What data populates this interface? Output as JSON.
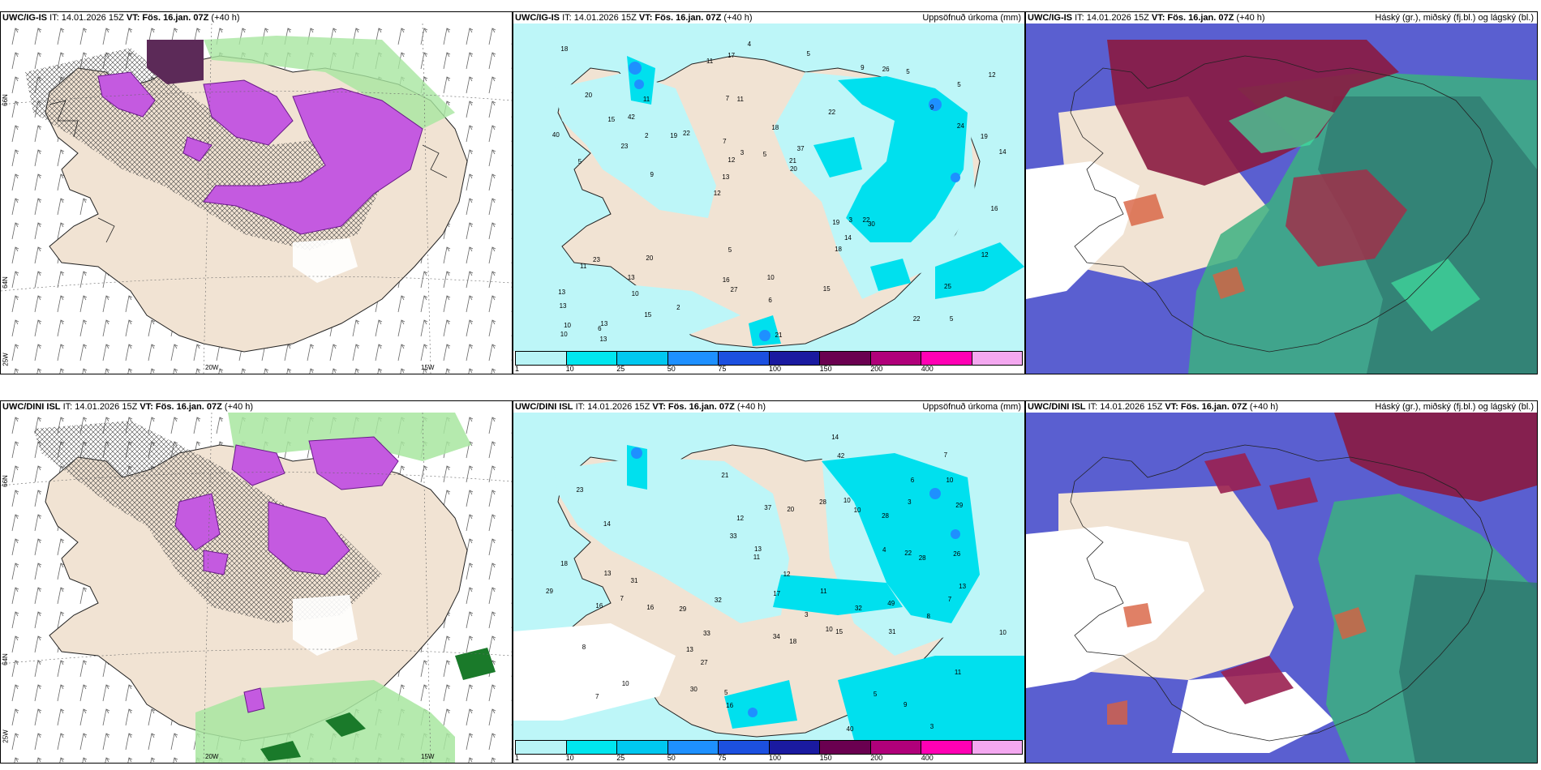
{
  "panels": [
    {
      "model": "UWC/IG-IS",
      "it": "IT: 14.01.2026 15Z",
      "vt": "VT: Fös. 16.jan. 07Z",
      "lead": "(+40 h)",
      "right": ""
    },
    {
      "model": "UWC/IG-IS",
      "it": "IT: 14.01.2026 15Z",
      "vt": "VT: Fös. 16.jan. 07Z",
      "lead": "(+40 h)",
      "right": "Uppsöfnuð úrkoma (mm)"
    },
    {
      "model": "UWC/IG-IS",
      "it": "IT: 14.01.2026 15Z",
      "vt": "VT: Fös. 16.jan. 07Z",
      "lead": "(+40 h)",
      "right": "Háský (gr.), miðský (fj.bl.) og lágský (bl.)"
    },
    {
      "model": "UWC/DINI ISL",
      "it": "IT: 14.01.2026 15Z",
      "vt": "VT: Fös. 16.jan. 07Z",
      "lead": "(+40 h)",
      "right": ""
    },
    {
      "model": "UWC/DINI ISL",
      "it": "IT: 14.01.2026 15Z",
      "vt": "VT: Fös. 16.jan. 07Z",
      "lead": "(+40 h)",
      "right": "Uppsöfnuð úrkoma (mm)"
    },
    {
      "model": "UWC/DINI ISL",
      "it": "IT: 14.01.2026 15Z",
      "vt": "VT: Fös. 16.jan. 07Z",
      "lead": "(+40 h)",
      "right": "Háský (gr.), miðský (fj.bl.) og lágský (bl.)"
    }
  ],
  "axis": {
    "lat66": "66N",
    "lat64": "64N",
    "lon25": "25W",
    "lon20": "20W",
    "lon15": "15W"
  },
  "legend": {
    "ticks": [
      "1",
      "10",
      "25",
      "50",
      "75",
      "100",
      "150",
      "200",
      "400"
    ],
    "colors": [
      "#b8f4f6",
      "#00e6ee",
      "#00c8f0",
      "#1e90ff",
      "#1c50e0",
      "#1a1aa0",
      "#6a0050",
      "#b0007a",
      "#ff00b4",
      "#f4a8f0"
    ]
  },
  "colors": {
    "land": "#f1e3d3",
    "sea_precip": "#bdf6f8",
    "snow_purple": "#b84ad8",
    "green": "#a8e6a0"
  },
  "ig_precip_values": [
    "5",
    "5",
    "5",
    "12",
    "22",
    "13",
    "7",
    "18",
    "23",
    "22",
    "13",
    "10",
    "11",
    "37",
    "30",
    "20",
    "17",
    "14",
    "19",
    "24",
    "13",
    "16",
    "12",
    "11",
    "9",
    "20",
    "22",
    "25",
    "22",
    "21",
    "19",
    "23",
    "18",
    "15",
    "19",
    "21",
    "10",
    "27",
    "20",
    "11",
    "9",
    "12",
    "14",
    "15",
    "13",
    "13",
    "10",
    "10",
    "5",
    "4",
    "9",
    "40",
    "42",
    "26",
    "6",
    "5",
    "11",
    "3",
    "12",
    "5",
    "2",
    "3",
    "2",
    "13",
    "18",
    "15",
    "16",
    "7",
    "6",
    "5"
  ],
  "dini_precip_values": [
    "3",
    "7",
    "10",
    "23",
    "11",
    "14",
    "10",
    "29",
    "28",
    "37",
    "10",
    "9",
    "27",
    "21",
    "11",
    "8",
    "49",
    "12",
    "18",
    "7",
    "7",
    "20",
    "22",
    "10",
    "13",
    "13",
    "16",
    "17",
    "11",
    "10",
    "15",
    "16",
    "13",
    "10",
    "12",
    "8",
    "7",
    "5",
    "6",
    "40",
    "33",
    "18",
    "30",
    "14",
    "32",
    "31",
    "29",
    "42",
    "28",
    "34",
    "32",
    "26",
    "31",
    "28",
    "33",
    "29",
    "16",
    "13",
    "3",
    "4",
    "5",
    "3"
  ]
}
